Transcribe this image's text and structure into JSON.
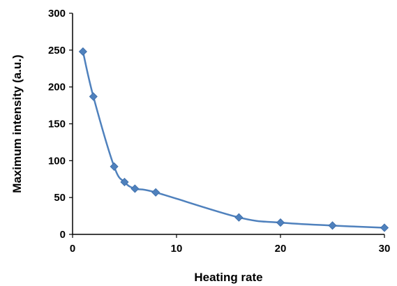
{
  "chart_data": {
    "type": "scatter",
    "title": "",
    "xlabel": "Heating rate",
    "ylabel": "Maximum intensity (a.u.)",
    "xlim": [
      0,
      30
    ],
    "ylim": [
      0,
      300
    ],
    "x_ticks": [
      0,
      10,
      20,
      30
    ],
    "y_ticks": [
      0,
      50,
      100,
      150,
      200,
      250,
      300
    ],
    "grid": false,
    "legend": "none",
    "line_style": "smoothed with diamond markers",
    "series": [
      {
        "color": "#4F81BD",
        "x": [
          1,
          2,
          4,
          5,
          6,
          8,
          16,
          20,
          25,
          30
        ],
        "y": [
          248,
          187,
          92,
          71,
          62,
          57,
          23,
          16,
          12,
          9
        ]
      }
    ]
  }
}
